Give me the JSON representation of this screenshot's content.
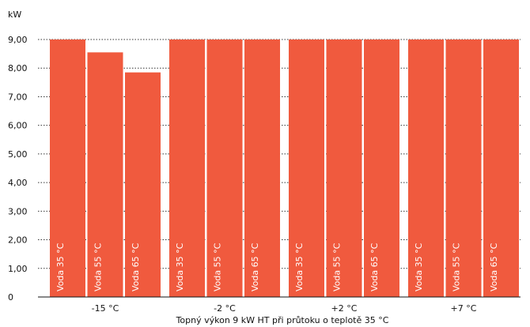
{
  "chart_data": {
    "type": "bar",
    "unit_label": "kW",
    "caption": "Topný výkon 9 kW HT při průtoku o teplotě 35 °C",
    "categories": [
      "-15 °C",
      "-2 °C",
      "+2 °C",
      "+7 °C"
    ],
    "series": [
      {
        "name": "Voda 35 °C",
        "values": [
          9.0,
          9.0,
          9.0,
          9.0
        ]
      },
      {
        "name": "Voda 55 °C",
        "values": [
          8.55,
          9.0,
          9.0,
          9.0
        ]
      },
      {
        "name": "Voda 65 °C",
        "values": [
          7.85,
          9.0,
          9.0,
          9.0
        ]
      }
    ],
    "y_ticks": [
      "0",
      "1,00",
      "2,00",
      "3,00",
      "4,00",
      "5,00",
      "6,00",
      "7,00",
      "8,00",
      "9,00"
    ],
    "ylim": [
      0,
      9
    ],
    "grid": true,
    "bar_color": "#F05A3E"
  }
}
